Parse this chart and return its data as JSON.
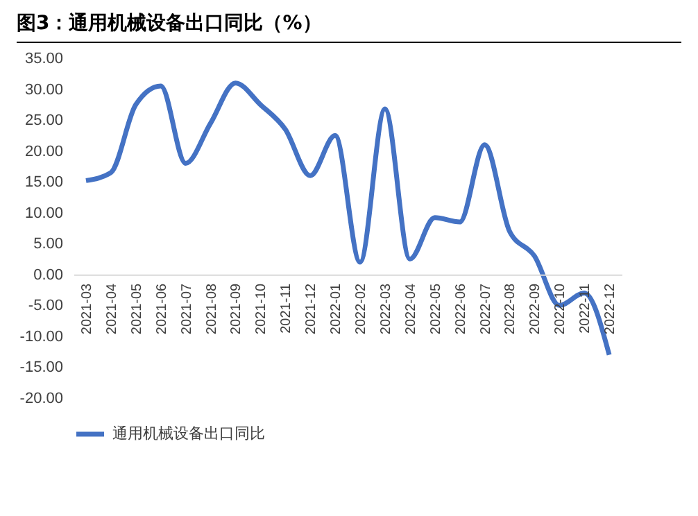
{
  "chart_data": {
    "type": "line",
    "title": "图3：通用机械设备出口同比（%）",
    "categories": [
      "2021-03",
      "2021-04",
      "2021-05",
      "2021-06",
      "2021-07",
      "2021-08",
      "2021-09",
      "2021-10",
      "2021-11",
      "2021-12",
      "2022-01",
      "2022-02",
      "2022-03",
      "2022-04",
      "2022-05",
      "2022-06",
      "2022-07",
      "2022-08",
      "2022-09",
      "2022-10",
      "2022-11",
      "2022-12"
    ],
    "series": [
      {
        "name": "通用机械设备出口同比",
        "color": "#4472c4",
        "values": [
          15.2,
          16.5,
          27.5,
          30.5,
          18,
          24.5,
          31,
          27.5,
          23.5,
          16,
          22.5,
          2,
          26.8,
          2.5,
          9.2,
          8.5,
          21,
          7,
          3,
          -5,
          -3,
          -13
        ]
      }
    ],
    "ylim": [
      -20,
      35
    ],
    "yticks": [
      {
        "value": -20,
        "label": "-20.00"
      },
      {
        "value": -15,
        "label": "-15.00"
      },
      {
        "value": -10,
        "label": "-10.00"
      },
      {
        "value": -5,
        "label": "-5.00"
      },
      {
        "value": 0,
        "label": "0.00"
      },
      {
        "value": 5,
        "label": "5.00"
      },
      {
        "value": 10,
        "label": "10.00"
      },
      {
        "value": 15,
        "label": "15.00"
      },
      {
        "value": 20,
        "label": "20.00"
      },
      {
        "value": 25,
        "label": "25.00"
      },
      {
        "value": 30,
        "label": "30.00"
      },
      {
        "value": 35,
        "label": "35.00"
      }
    ],
    "grid": false,
    "legend": "bottom",
    "marker": "none",
    "line_style": "solid"
  }
}
